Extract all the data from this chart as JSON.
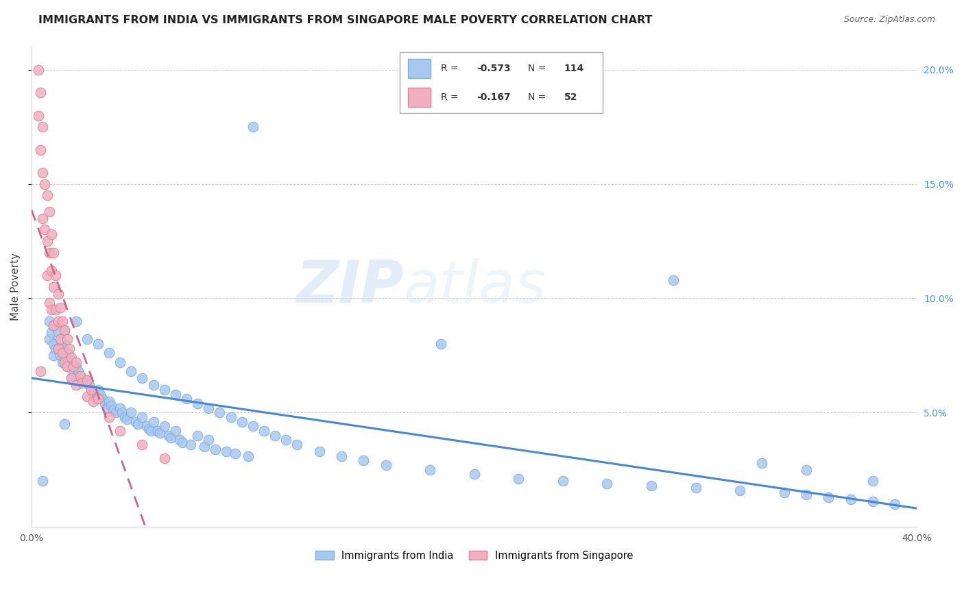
{
  "title": "IMMIGRANTS FROM INDIA VS IMMIGRANTS FROM SINGAPORE MALE POVERTY CORRELATION CHART",
  "source": "Source: ZipAtlas.com",
  "ylabel": "Male Poverty",
  "xlim": [
    0.0,
    0.4
  ],
  "ylim": [
    0.0,
    0.21
  ],
  "xticks": [
    0.0,
    0.05,
    0.1,
    0.15,
    0.2,
    0.25,
    0.3,
    0.35,
    0.4
  ],
  "xticklabels": [
    "0.0%",
    "",
    "",
    "",
    "",
    "",
    "",
    "",
    "40.0%"
  ],
  "yticks_right": [
    0.05,
    0.1,
    0.15,
    0.2
  ],
  "ytick_labels_right": [
    "5.0%",
    "10.0%",
    "15.0%",
    "20.0%"
  ],
  "india_color": "#a8c8f0",
  "india_edge": "#7ab0e0",
  "singapore_color": "#f0b0c0",
  "singapore_edge": "#e08090",
  "india_R": -0.573,
  "india_N": 114,
  "singapore_R": -0.167,
  "singapore_N": 52,
  "india_line_color": "#4488dd",
  "singapore_line_color": "#cc6688",
  "watermark_zip": "ZIP",
  "watermark_atlas": "atlas",
  "india_label": "Immigrants from India",
  "singapore_label": "Immigrants from Singapore",
  "india_scatter_x": [
    0.008,
    0.008,
    0.009,
    0.01,
    0.01,
    0.01,
    0.011,
    0.012,
    0.013,
    0.013,
    0.014,
    0.014,
    0.015,
    0.015,
    0.015,
    0.016,
    0.016,
    0.017,
    0.018,
    0.018,
    0.019,
    0.02,
    0.02,
    0.021,
    0.022,
    0.023,
    0.025,
    0.025,
    0.026,
    0.027,
    0.028,
    0.029,
    0.03,
    0.03,
    0.031,
    0.032,
    0.033,
    0.034,
    0.035,
    0.035,
    0.036,
    0.037,
    0.038,
    0.04,
    0.04,
    0.041,
    0.042,
    0.043,
    0.045,
    0.045,
    0.047,
    0.048,
    0.05,
    0.05,
    0.052,
    0.053,
    0.054,
    0.055,
    0.055,
    0.057,
    0.058,
    0.06,
    0.06,
    0.062,
    0.063,
    0.065,
    0.065,
    0.067,
    0.068,
    0.07,
    0.072,
    0.075,
    0.075,
    0.078,
    0.08,
    0.08,
    0.083,
    0.085,
    0.088,
    0.09,
    0.092,
    0.095,
    0.098,
    0.1,
    0.105,
    0.11,
    0.115,
    0.12,
    0.13,
    0.14,
    0.15,
    0.16,
    0.18,
    0.2,
    0.22,
    0.24,
    0.26,
    0.28,
    0.3,
    0.32,
    0.34,
    0.35,
    0.36,
    0.37,
    0.38,
    0.39,
    0.015,
    0.185,
    0.005,
    0.1,
    0.29,
    0.33,
    0.35,
    0.38
  ],
  "india_scatter_y": [
    0.09,
    0.082,
    0.085,
    0.088,
    0.08,
    0.075,
    0.078,
    0.085,
    0.082,
    0.075,
    0.079,
    0.072,
    0.086,
    0.08,
    0.073,
    0.076,
    0.07,
    0.074,
    0.072,
    0.065,
    0.068,
    0.09,
    0.07,
    0.068,
    0.066,
    0.064,
    0.082,
    0.064,
    0.062,
    0.06,
    0.058,
    0.056,
    0.08,
    0.06,
    0.058,
    0.056,
    0.054,
    0.052,
    0.076,
    0.055,
    0.053,
    0.051,
    0.05,
    0.072,
    0.052,
    0.05,
    0.048,
    0.047,
    0.068,
    0.05,
    0.046,
    0.045,
    0.065,
    0.048,
    0.044,
    0.043,
    0.042,
    0.062,
    0.046,
    0.042,
    0.041,
    0.06,
    0.044,
    0.04,
    0.039,
    0.058,
    0.042,
    0.038,
    0.037,
    0.056,
    0.036,
    0.054,
    0.04,
    0.035,
    0.052,
    0.038,
    0.034,
    0.05,
    0.033,
    0.048,
    0.032,
    0.046,
    0.031,
    0.044,
    0.042,
    0.04,
    0.038,
    0.036,
    0.033,
    0.031,
    0.029,
    0.027,
    0.025,
    0.023,
    0.021,
    0.02,
    0.019,
    0.018,
    0.017,
    0.016,
    0.015,
    0.014,
    0.013,
    0.012,
    0.011,
    0.01,
    0.045,
    0.08,
    0.02,
    0.175,
    0.108,
    0.028,
    0.025,
    0.02
  ],
  "singapore_scatter_x": [
    0.003,
    0.003,
    0.004,
    0.004,
    0.005,
    0.005,
    0.005,
    0.006,
    0.006,
    0.007,
    0.007,
    0.007,
    0.008,
    0.008,
    0.008,
    0.009,
    0.009,
    0.009,
    0.01,
    0.01,
    0.01,
    0.011,
    0.011,
    0.012,
    0.012,
    0.012,
    0.013,
    0.013,
    0.014,
    0.014,
    0.015,
    0.015,
    0.016,
    0.016,
    0.017,
    0.018,
    0.018,
    0.019,
    0.02,
    0.02,
    0.022,
    0.023,
    0.025,
    0.025,
    0.027,
    0.028,
    0.03,
    0.035,
    0.04,
    0.05,
    0.004,
    0.06
  ],
  "singapore_scatter_y": [
    0.2,
    0.18,
    0.19,
    0.165,
    0.175,
    0.155,
    0.135,
    0.15,
    0.13,
    0.145,
    0.125,
    0.11,
    0.138,
    0.12,
    0.098,
    0.128,
    0.112,
    0.095,
    0.12,
    0.105,
    0.088,
    0.11,
    0.095,
    0.102,
    0.09,
    0.078,
    0.096,
    0.082,
    0.09,
    0.076,
    0.086,
    0.072,
    0.082,
    0.07,
    0.078,
    0.074,
    0.065,
    0.07,
    0.072,
    0.062,
    0.066,
    0.063,
    0.064,
    0.057,
    0.06,
    0.055,
    0.056,
    0.048,
    0.042,
    0.036,
    0.068,
    0.03
  ]
}
